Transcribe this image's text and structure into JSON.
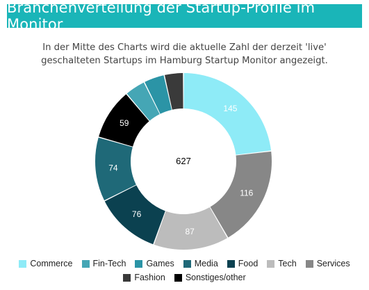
{
  "header": {
    "title": "Branchenverteilung der Startup-Profile im Monitor"
  },
  "description": "In der Mitte des Charts wird die aktuelle Zahl der derzeit 'live' geschalteten Startups im Hamburg Startup Monitor angezeigt.",
  "chart_data": {
    "type": "pie",
    "variant": "donut",
    "center_label": "627",
    "legend_position": "bottom",
    "slices": [
      {
        "name": "Commerce",
        "value": 145,
        "label": "145",
        "color": "#8eebf7"
      },
      {
        "name": "Services",
        "value": 116,
        "label": "116",
        "color": "#878787"
      },
      {
        "name": "Tech",
        "value": 87,
        "label": "87",
        "color": "#bcbcbc"
      },
      {
        "name": "Food",
        "value": 76,
        "label": "76",
        "color": "#0b4150"
      },
      {
        "name": "Media",
        "value": 74,
        "label": "74",
        "color": "#1f6978"
      },
      {
        "name": "Sonstiges/other",
        "value": 59,
        "label": "59",
        "color": "#000000"
      },
      {
        "name": "Fin-Tech",
        "value": 24,
        "label": "",
        "color": "#45a6b5"
      },
      {
        "name": "Games",
        "value": 24,
        "label": "",
        "color": "#2b94a6"
      },
      {
        "name": "Fashion",
        "value": 22,
        "label": "",
        "color": "#3a3a3a"
      }
    ],
    "legend": [
      {
        "name": "Commerce",
        "color": "#8eebf7"
      },
      {
        "name": "Fin-Tech",
        "color": "#45a6b5"
      },
      {
        "name": "Games",
        "color": "#2b94a6"
      },
      {
        "name": "Media",
        "color": "#1f6978"
      },
      {
        "name": "Food",
        "color": "#0b4150"
      },
      {
        "name": "Tech",
        "color": "#bcbcbc"
      },
      {
        "name": "Services",
        "color": "#878787"
      },
      {
        "name": "Fashion",
        "color": "#3a3a3a"
      },
      {
        "name": "Sonstiges/other",
        "color": "#000000"
      }
    ]
  }
}
